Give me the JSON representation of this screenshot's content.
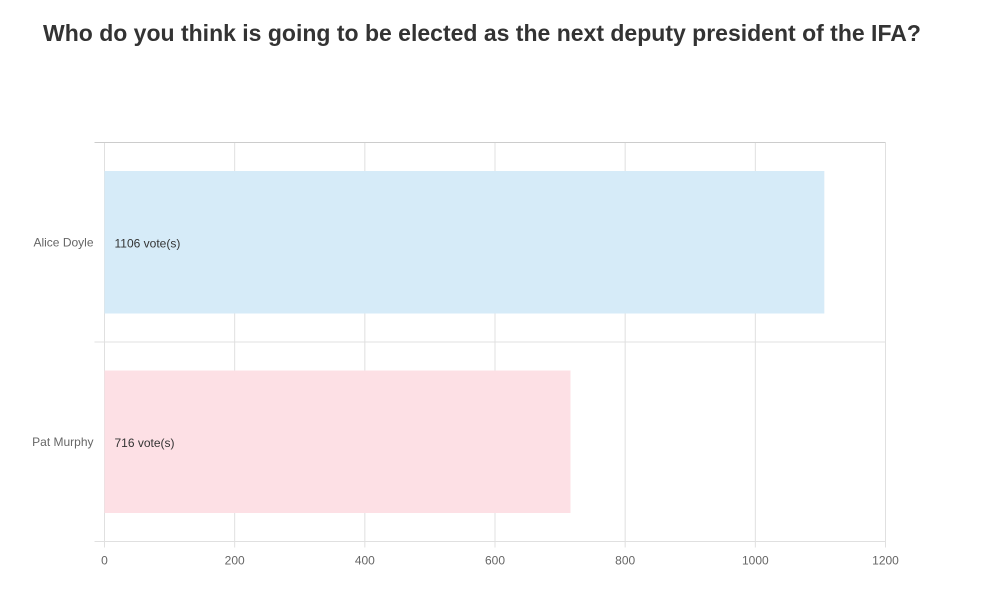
{
  "chart_data": {
    "type": "bar",
    "orientation": "horizontal",
    "title": "Who do you think is going to be elected as the next deputy president of the IFA?",
    "categories": [
      "Alice Doyle",
      "Pat Murphy"
    ],
    "values": [
      1106,
      716
    ],
    "value_labels": [
      "1106 vote(s)",
      "716 vote(s)"
    ],
    "xlim": [
      0,
      1200
    ],
    "x_ticks": [
      0,
      200,
      400,
      600,
      800,
      1000,
      1200
    ],
    "grid": true,
    "xlabel": "",
    "ylabel": "",
    "colors": {
      "bar_fills": [
        "#d6ebf8",
        "#fde0e5"
      ],
      "grid": "#e0e0e0",
      "title": "#333333",
      "axis_text": "#666666"
    }
  }
}
